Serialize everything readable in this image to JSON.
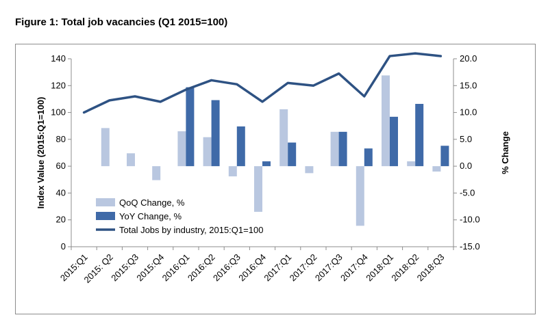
{
  "figure_title": "Figure 1: Total job vacancies (Q1 2015=100)",
  "colors": {
    "qoq": "#b9c7e0",
    "yoy": "#3f6aa8",
    "line": "#2e5283",
    "axis": "#8c8c8c"
  },
  "chart_data": {
    "type": "bar",
    "categories": [
      "2015:Q1",
      "2015: Q2",
      "2015:Q3",
      "2015:Q4",
      "2016:Q1",
      "2016:Q2",
      "2016:Q3",
      "2016:Q4",
      "2017:Q1",
      "2017:Q2",
      "2017:Q3",
      "2017:Q4",
      "2018:Q1",
      "2018:Q2",
      "2018:Q3"
    ],
    "ylabel": "Index  Value  (2015:Q1=100)",
    "y2label": "% Change",
    "ylim": [
      0,
      140
    ],
    "y2lim": [
      -15,
      20
    ],
    "yticks": [
      "0",
      "20",
      "40",
      "60",
      "80",
      "100",
      "120",
      "140"
    ],
    "y2ticks": [
      "-15.0",
      "-10.0",
      "-5.0",
      "0.0",
      "5.0",
      "10.0",
      "15.0",
      "20.0"
    ],
    "legend_position": "bottom-left inside plot",
    "series": [
      {
        "name": "QoQ Change, %",
        "kind": "bar",
        "axis": "right",
        "values": [
          null,
          7.1,
          2.4,
          -2.6,
          6.5,
          5.4,
          -1.9,
          -8.5,
          10.6,
          -1.3,
          6.4,
          -11.1,
          16.9,
          0.9,
          -1.0
        ]
      },
      {
        "name": "YoY Change, %",
        "kind": "bar",
        "axis": "right",
        "values": [
          null,
          null,
          null,
          null,
          14.7,
          12.3,
          7.4,
          0.9,
          4.4,
          null,
          6.4,
          3.3,
          9.2,
          11.6,
          3.8
        ]
      },
      {
        "name": "Total Jobs by industry, 2015:Q1=100",
        "kind": "line",
        "axis": "left",
        "values": [
          100,
          109,
          112,
          108,
          117,
          124,
          121,
          108,
          122,
          120,
          129,
          112,
          142,
          144,
          142
        ]
      }
    ]
  }
}
